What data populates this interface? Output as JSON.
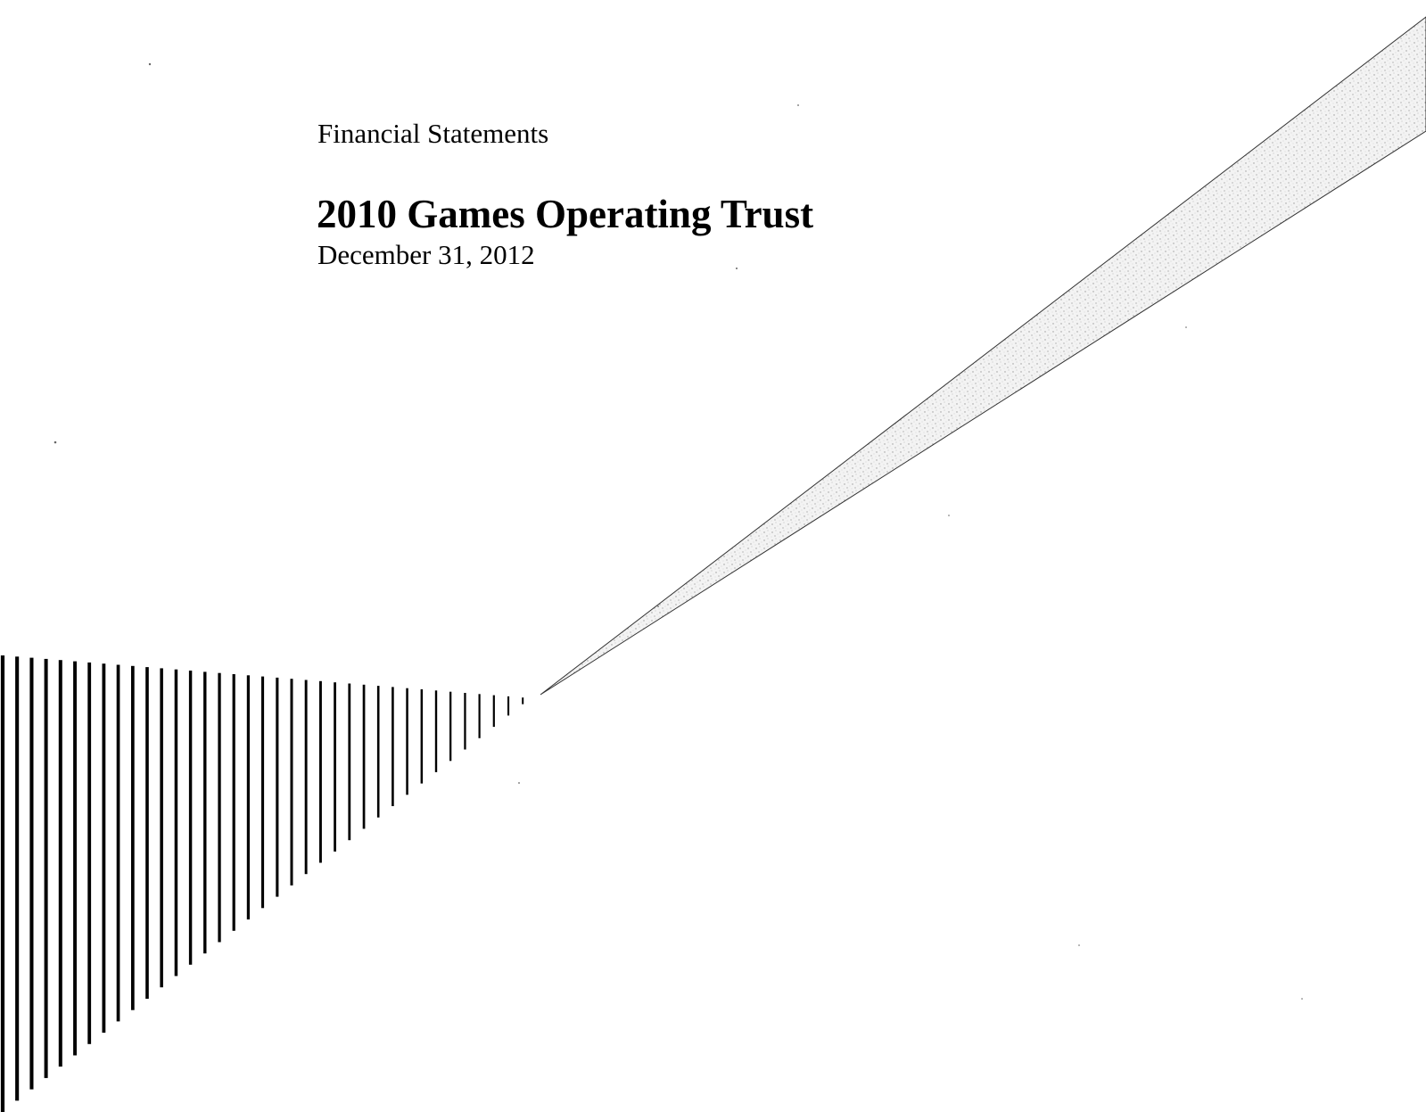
{
  "cover": {
    "document_type": "Financial Statements",
    "entity_name": "2010 Games Operating Trust",
    "period_date": "December 31, 2012"
  },
  "decoration": {
    "stripe_color": "#000000",
    "beam_fill": "#e6e6e6",
    "beam_stroke": "#333333"
  }
}
